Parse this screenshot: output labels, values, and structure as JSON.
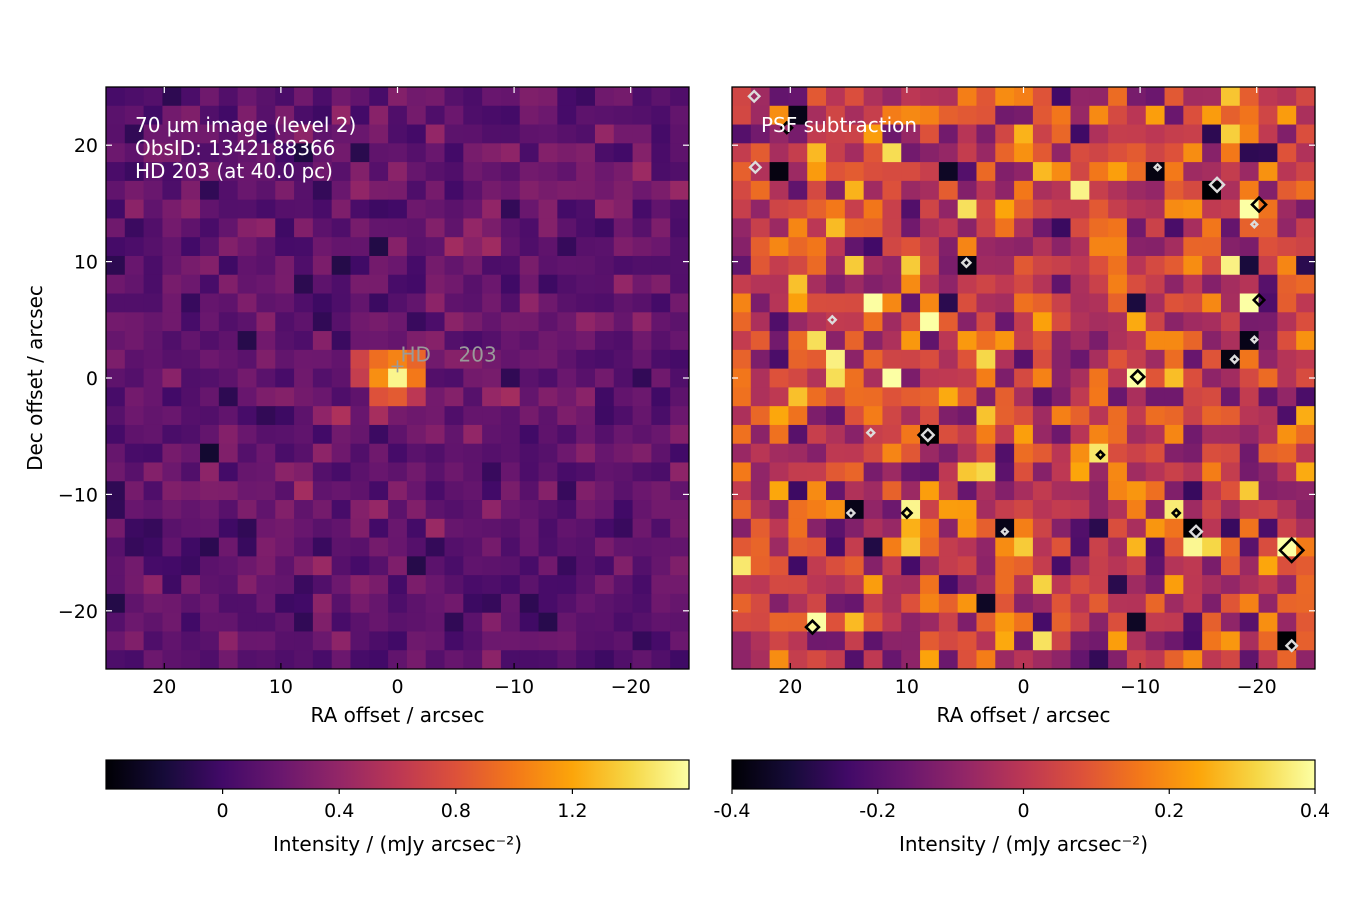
{
  "chart_data": [
    {
      "type": "heatmap",
      "ylabel": "Dec offset / arcsec",
      "xlabel": "RA offset / arcsec",
      "xlim": [
        25,
        -25
      ],
      "ylim": [
        -25,
        25
      ],
      "xticks": [
        20,
        10,
        0,
        -10,
        -20
      ],
      "yticks": [
        20,
        10,
        0,
        -10,
        -20
      ],
      "xtick_labels": [
        "20",
        "10",
        "0",
        "−10",
        "−20"
      ],
      "ytick_labels": [
        "20",
        "10",
        "0",
        "−10",
        "−20"
      ],
      "annotation_lines": [
        "70 µm image (level 2)",
        "ObsID: 1342188366",
        "HD 203 (at 40.0 pc)"
      ],
      "source_marker": {
        "x": 0,
        "y": 1,
        "label_parts": [
          "HD",
          "203"
        ]
      },
      "grid": {
        "nx": 31,
        "ny": 31
      },
      "colormap": "inferno",
      "colorbar": {
        "label": "Intensity / (mJy arcsec⁻²)",
        "vmin": -0.4,
        "vmax": 1.6,
        "ticks": [
          0,
          0.4,
          0.8,
          1.2
        ],
        "tick_labels": [
          "0",
          "0.4",
          "0.8",
          "1.2"
        ]
      },
      "bright_pixels": [
        {
          "x": 0,
          "y": 0,
          "value": 1.55
        },
        {
          "x": 1.6,
          "y": 0,
          "value": 1.1
        },
        {
          "x": 0,
          "y": 1.6,
          "value": 1.05
        },
        {
          "x": -1.6,
          "y": 0,
          "value": 1.0
        },
        {
          "x": 1.6,
          "y": 1.6,
          "value": 0.95
        },
        {
          "x": -1.6,
          "y": 1.6,
          "value": 0.9
        },
        {
          "x": 1.6,
          "y": -1.6,
          "value": 0.8
        },
        {
          "x": 0,
          "y": -1.6,
          "value": 0.85
        },
        {
          "x": 3.2,
          "y": 1.6,
          "value": 0.7
        },
        {
          "x": -1.6,
          "y": -1.6,
          "value": 0.6
        },
        {
          "x": 3.2,
          "y": 0,
          "value": 0.65
        }
      ]
    },
    {
      "type": "heatmap",
      "xlabel": "RA offset / arcsec",
      "xlim": [
        25,
        -25
      ],
      "ylim": [
        -25,
        25
      ],
      "xticks": [
        20,
        10,
        0,
        -10,
        -20
      ],
      "xtick_labels": [
        "20",
        "10",
        "0",
        "−10",
        "−20"
      ],
      "annotation_lines": [
        "PSF subtraction"
      ],
      "grid": {
        "nx": 31,
        "ny": 31
      },
      "colormap": "inferno",
      "colorbar": {
        "label": "Intensity / (mJy arcsec⁻²)",
        "vmin": -0.4,
        "vmax": 0.4,
        "ticks": [
          -0.4,
          -0.2,
          0,
          0.2,
          0.4
        ],
        "tick_labels": [
          "-0.4",
          "-0.2",
          "0",
          "0.2",
          "0.4"
        ]
      },
      "contours": {
        "black": [
          {
            "x": 8.2,
            "y": -4.9,
            "r": 0.8
          },
          {
            "x": -9.8,
            "y": 0.1,
            "r": 0.55
          },
          {
            "x": -20.2,
            "y": 14.9,
            "r": 0.6
          },
          {
            "x": -20.2,
            "y": 6.7,
            "r": 0.45
          },
          {
            "x": -23.0,
            "y": -14.8,
            "r": 1.0
          },
          {
            "x": 18.1,
            "y": -21.4,
            "r": 0.55
          },
          {
            "x": 10.0,
            "y": -11.6,
            "r": 0.4
          },
          {
            "x": -6.6,
            "y": -6.6,
            "r": 0.3
          },
          {
            "x": -13.1,
            "y": -11.6,
            "r": 0.3
          },
          {
            "x": 20.3,
            "y": 21.5,
            "r": 0.45
          }
        ],
        "white": [
          {
            "x": -16.6,
            "y": 16.6,
            "r": 0.6
          },
          {
            "x": 8.2,
            "y": -4.9,
            "r": 0.5
          },
          {
            "x": -14.8,
            "y": -13.2,
            "r": 0.5
          },
          {
            "x": -23.0,
            "y": -23.0,
            "r": 0.45
          },
          {
            "x": 23.0,
            "y": 18.1,
            "r": 0.45
          },
          {
            "x": 23.1,
            "y": 24.2,
            "r": 0.45
          },
          {
            "x": 4.9,
            "y": 9.9,
            "r": 0.35
          },
          {
            "x": 13.1,
            "y": -4.7,
            "r": 0.3
          },
          {
            "x": 16.4,
            "y": 5.0,
            "r": 0.3
          },
          {
            "x": 14.8,
            "y": -11.6,
            "r": 0.3
          },
          {
            "x": -18.1,
            "y": 1.6,
            "r": 0.3
          },
          {
            "x": -11.5,
            "y": 18.1,
            "r": 0.25
          },
          {
            "x": -19.8,
            "y": 3.3,
            "r": 0.25
          },
          {
            "x": -19.8,
            "y": 13.2,
            "r": 0.25
          },
          {
            "x": 1.6,
            "y": -13.2,
            "r": 0.25
          }
        ]
      },
      "bright_pixels": [
        {
          "x": -19.8,
          "y": 14.8,
          "value": 0.4
        },
        {
          "x": -19.8,
          "y": 6.6,
          "value": 0.4
        },
        {
          "x": -9.9,
          "y": 0,
          "value": 0.4
        },
        {
          "x": 18.1,
          "y": -21.4,
          "value": 0.4
        },
        {
          "x": -23.0,
          "y": -14.8,
          "value": 0.4
        },
        {
          "x": 9.9,
          "y": -11.5,
          "value": 0.38
        },
        {
          "x": 16.5,
          "y": 1.6,
          "value": 0.37
        },
        {
          "x": -13.2,
          "y": -11.5,
          "value": 0.36
        },
        {
          "x": -6.6,
          "y": -6.6,
          "value": 0.35
        }
      ],
      "dark_pixels": [
        {
          "x": 8.2,
          "y": -4.9,
          "value": -0.4
        },
        {
          "x": -16.5,
          "y": 16.5,
          "value": -0.4
        },
        {
          "x": -14.8,
          "y": -13.2,
          "value": -0.4
        },
        {
          "x": -23.0,
          "y": -23.0,
          "value": -0.4
        },
        {
          "x": 4.9,
          "y": 9.9,
          "value": -0.38
        },
        {
          "x": -11.5,
          "y": 18.1,
          "value": -0.38
        },
        {
          "x": -18.1,
          "y": 1.6,
          "value": -0.38
        },
        {
          "x": 1.6,
          "y": -13.2,
          "value": -0.37
        },
        {
          "x": 21.4,
          "y": 18.1,
          "value": -0.38
        },
        {
          "x": 14.8,
          "y": -11.5,
          "value": -0.37
        },
        {
          "x": -19.8,
          "y": 3.3,
          "value": -0.37
        },
        {
          "x": 19.8,
          "y": 23.0,
          "value": -0.37
        },
        {
          "x": 3.3,
          "y": -19.8,
          "value": -0.35
        },
        {
          "x": 6.6,
          "y": 18.1,
          "value": -0.35
        },
        {
          "x": -9.9,
          "y": -21.4,
          "value": -0.35
        }
      ]
    }
  ]
}
